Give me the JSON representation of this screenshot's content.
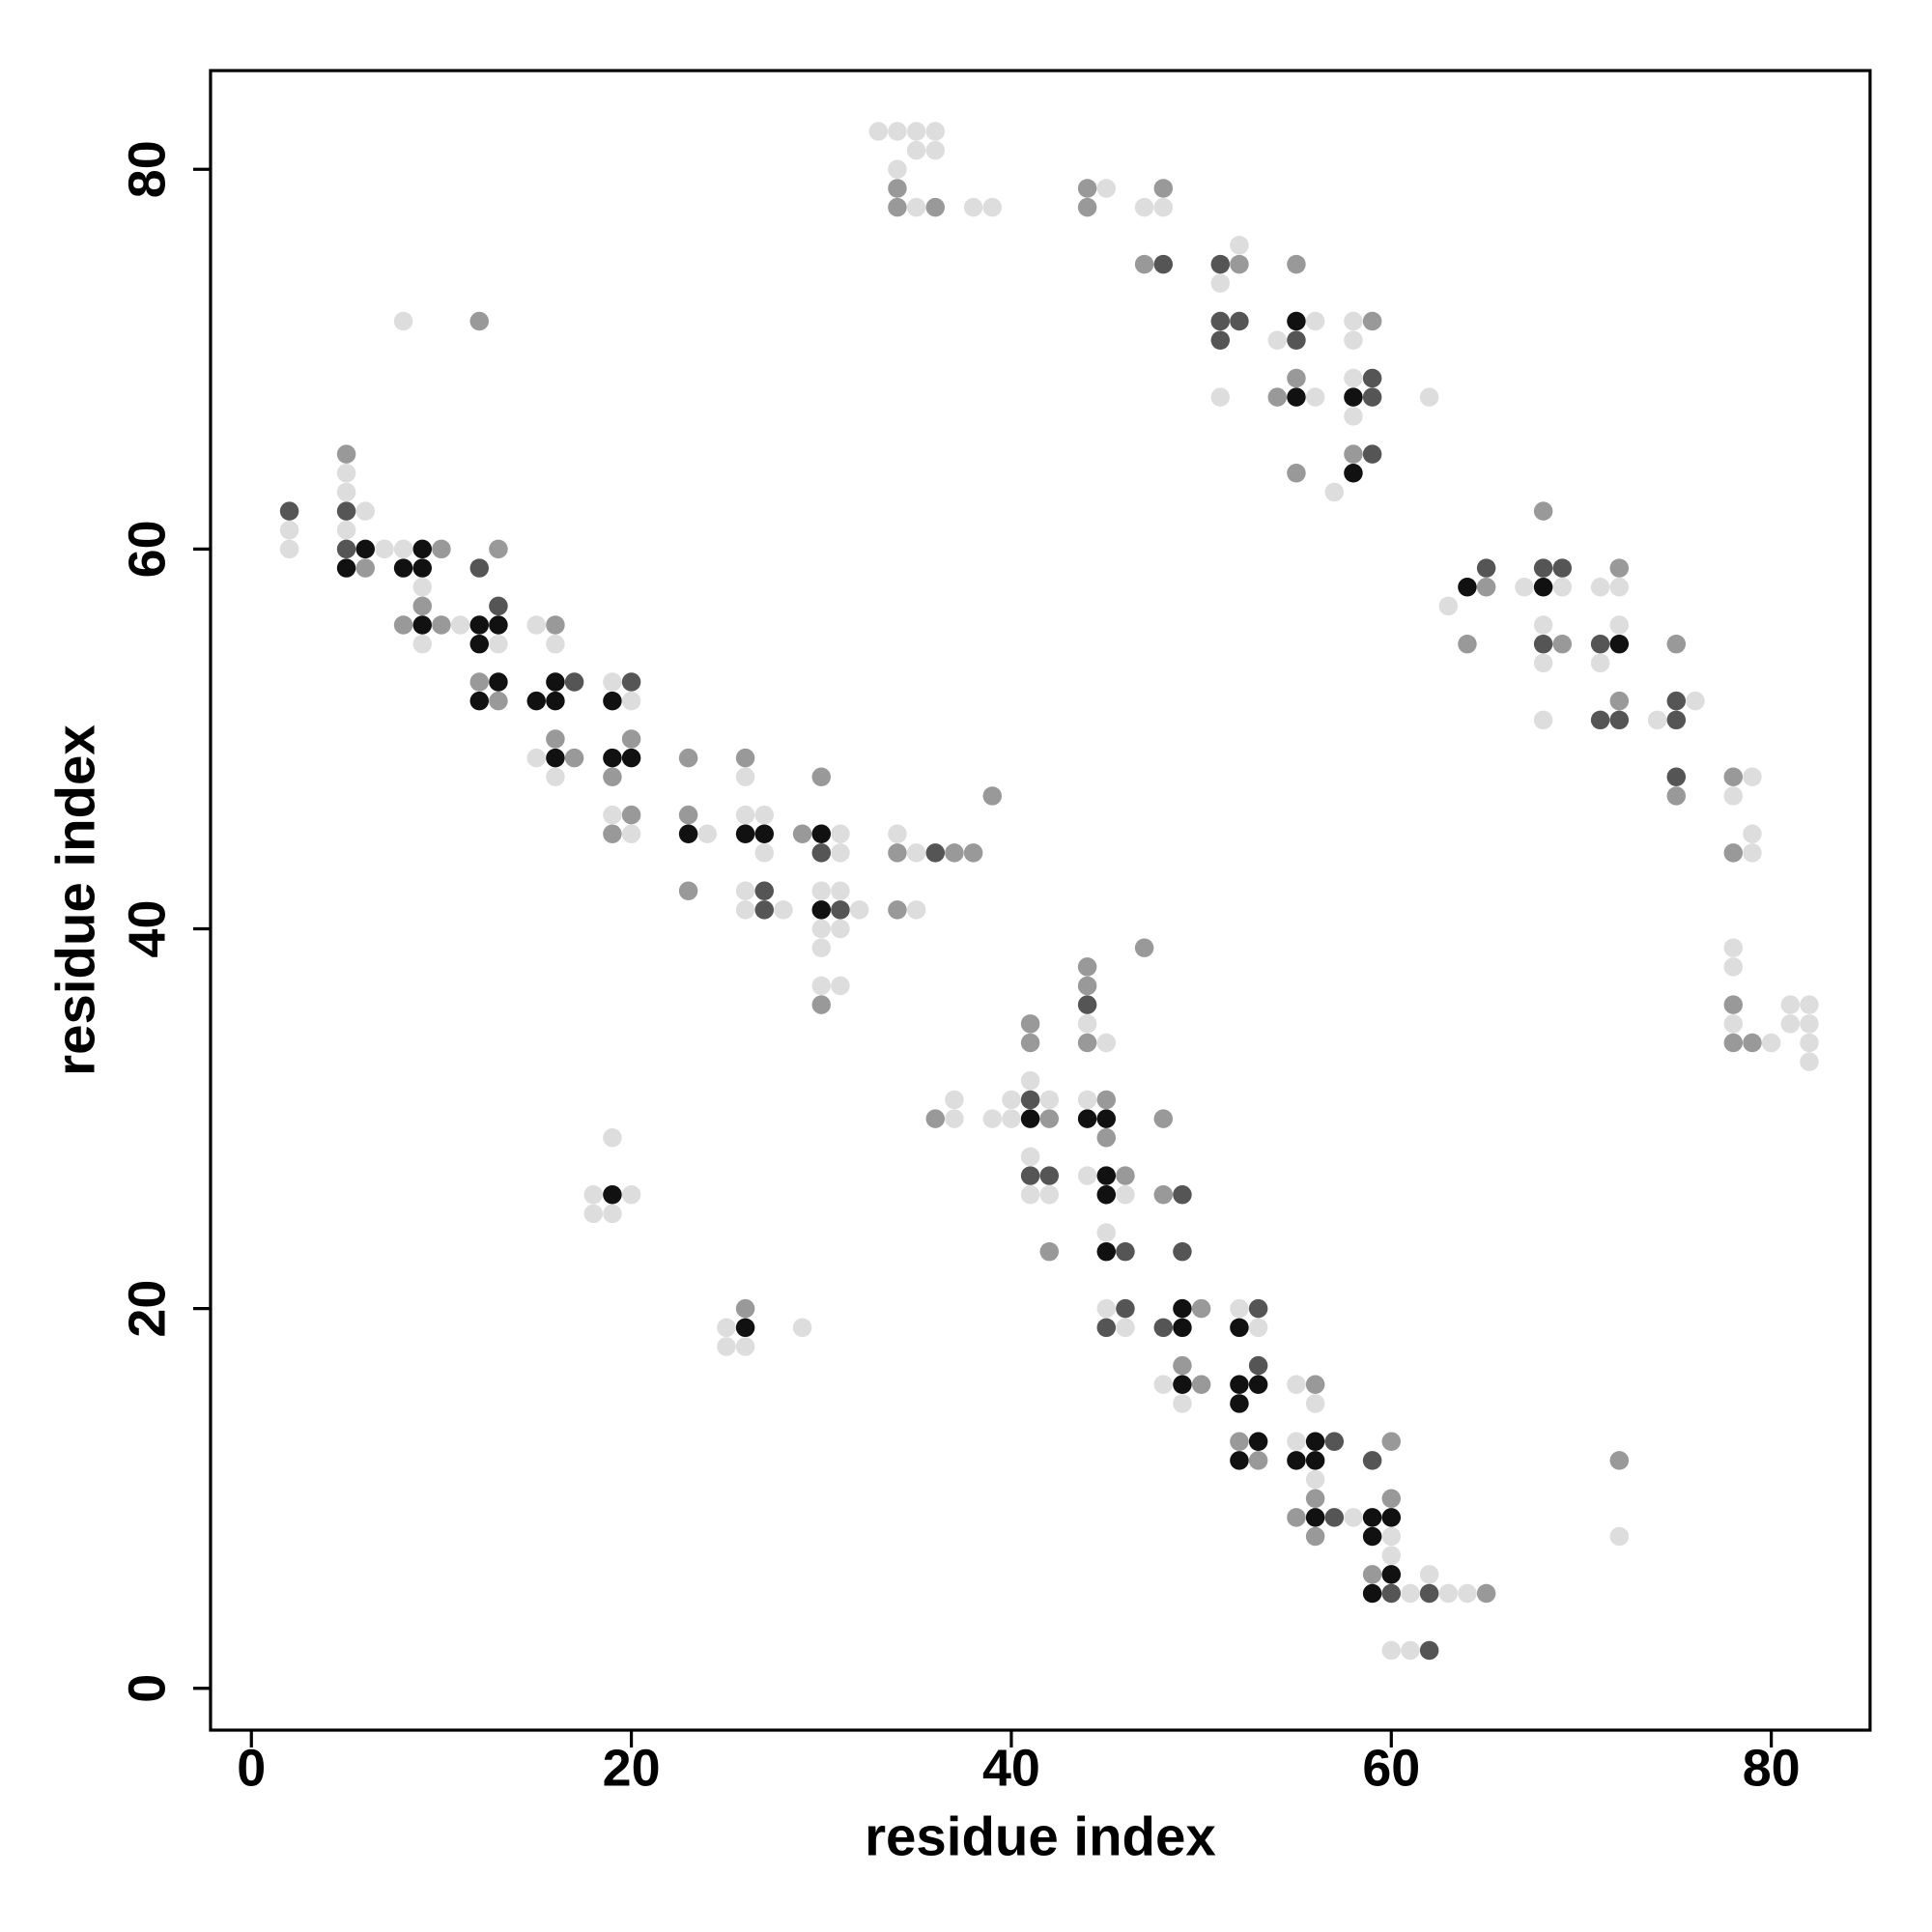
{
  "chart_data": {
    "type": "scatter",
    "x_label": "residue index",
    "y_label": "residue index",
    "xlim": [
      -2.15,
      85.2
    ],
    "ylim": [
      -2.2,
      85.2
    ],
    "xticks": [
      0,
      20,
      40,
      60,
      80
    ],
    "yticks": [
      0,
      20,
      40,
      60,
      80
    ],
    "grid": false,
    "series": [
      {
        "color": "#dddddd",
        "x": [
          2,
          2,
          5,
          5,
          5,
          6,
          7,
          8,
          8,
          9,
          9,
          11,
          13,
          15,
          15,
          16,
          16,
          18,
          18,
          19,
          19,
          19,
          19,
          20,
          20,
          20,
          24,
          25,
          25,
          26,
          26,
          26,
          26,
          26,
          27,
          27,
          28,
          29,
          30,
          30,
          30,
          30,
          31,
          31,
          31,
          31,
          31,
          32,
          33,
          34,
          34,
          34,
          35,
          35,
          35,
          35,
          35,
          36,
          36,
          37,
          37,
          38,
          39,
          39,
          40,
          40,
          41,
          41,
          41,
          42,
          42,
          44,
          44,
          44,
          45,
          45,
          45,
          45,
          46,
          46,
          47,
          48,
          48,
          49,
          51,
          51,
          52,
          52,
          53,
          54,
          55,
          55,
          56,
          56,
          56,
          56,
          57,
          58,
          58,
          58,
          58,
          58,
          60,
          60,
          60,
          61,
          61,
          62,
          62,
          63,
          63,
          64,
          67,
          68,
          68,
          68,
          69,
          71,
          71,
          72,
          72,
          72,
          74,
          76,
          78,
          78,
          78,
          78,
          79,
          79,
          79,
          80,
          81,
          81,
          82,
          82,
          82,
          82
        ],
        "y": [
          61,
          60,
          64,
          63,
          61,
          62,
          60,
          72,
          60,
          58,
          55,
          56,
          55,
          56,
          49,
          55,
          48,
          26,
          25,
          53,
          46,
          29,
          25,
          52,
          45,
          26,
          45,
          19,
          18,
          48,
          46,
          42,
          41,
          18,
          46,
          44,
          41,
          19,
          42,
          40,
          39,
          37,
          45,
          44,
          42,
          40,
          37,
          41,
          82,
          82,
          80,
          45,
          82,
          81,
          78,
          44,
          41,
          82,
          81,
          31,
          30,
          78,
          78,
          30,
          31,
          30,
          32,
          28,
          26,
          31,
          26,
          35,
          31,
          27,
          79,
          34,
          24,
          20,
          26,
          19,
          78,
          78,
          16,
          15,
          74,
          68,
          76,
          20,
          19,
          71,
          16,
          13,
          72,
          68,
          15,
          11,
          63,
          72,
          71,
          69,
          67,
          9,
          8,
          7,
          2,
          5,
          2,
          68,
          6,
          57,
          5,
          5,
          58,
          56,
          54,
          51,
          58,
          58,
          54,
          58,
          56,
          8,
          51,
          52,
          47,
          39,
          38,
          35,
          48,
          45,
          44,
          34,
          36,
          35,
          36,
          35,
          34,
          33
        ]
      },
      {
        "color": "#999999",
        "x": [
          5,
          6,
          8,
          9,
          10,
          10,
          12,
          12,
          13,
          13,
          16,
          16,
          17,
          19,
          19,
          20,
          20,
          23,
          23,
          23,
          26,
          26,
          29,
          30,
          30,
          34,
          34,
          34,
          34,
          36,
          36,
          37,
          38,
          39,
          41,
          41,
          42,
          42,
          44,
          44,
          44,
          44,
          44,
          45,
          45,
          46,
          47,
          47,
          48,
          48,
          48,
          49,
          50,
          50,
          52,
          52,
          53,
          54,
          55,
          55,
          55,
          55,
          56,
          56,
          56,
          58,
          59,
          59,
          60,
          60,
          64,
          65,
          65,
          68,
          69,
          72,
          72,
          72,
          75,
          75,
          78,
          78,
          78,
          78,
          79
        ],
        "y": [
          65,
          59,
          56,
          57,
          60,
          56,
          72,
          53,
          60,
          52,
          56,
          50,
          49,
          48,
          45,
          50,
          46,
          49,
          46,
          42,
          49,
          20,
          45,
          48,
          36,
          79,
          78,
          44,
          41,
          78,
          30,
          44,
          44,
          47,
          35,
          34,
          30,
          23,
          79,
          78,
          38,
          37,
          34,
          31,
          29,
          27,
          75,
          39,
          79,
          30,
          26,
          17,
          20,
          16,
          75,
          13,
          12,
          68,
          75,
          69,
          64,
          9,
          16,
          10,
          8,
          65,
          72,
          6,
          13,
          10,
          55,
          58,
          5,
          62,
          55,
          59,
          52,
          12,
          55,
          47,
          48,
          44,
          36,
          34,
          34
        ]
      },
      {
        "color": "#555555",
        "x": [
          2,
          5,
          5,
          12,
          13,
          17,
          20,
          27,
          27,
          30,
          31,
          36,
          41,
          41,
          42,
          44,
          45,
          46,
          46,
          48,
          48,
          49,
          49,
          51,
          51,
          51,
          52,
          53,
          53,
          55,
          57,
          57,
          59,
          59,
          59,
          59,
          60,
          62,
          62,
          65,
          68,
          68,
          69,
          71,
          71,
          72,
          75,
          75,
          75
        ],
        "y": [
          62,
          62,
          60,
          59,
          57,
          53,
          53,
          42,
          41,
          44,
          41,
          44,
          31,
          27,
          27,
          36,
          19,
          23,
          20,
          75,
          19,
          26,
          23,
          75,
          72,
          71,
          72,
          20,
          17,
          71,
          13,
          9,
          69,
          68,
          65,
          12,
          5,
          5,
          2,
          59,
          59,
          55,
          59,
          55,
          51,
          51,
          52,
          51,
          48
        ]
      },
      {
        "color": "#111111",
        "x": [
          5,
          6,
          8,
          9,
          9,
          9,
          12,
          12,
          12,
          13,
          13,
          15,
          16,
          16,
          16,
          19,
          19,
          19,
          20,
          23,
          26,
          26,
          27,
          30,
          30,
          41,
          44,
          45,
          45,
          45,
          45,
          49,
          49,
          49,
          52,
          52,
          52,
          52,
          53,
          53,
          55,
          55,
          55,
          56,
          56,
          56,
          58,
          58,
          59,
          59,
          59,
          60,
          60,
          64,
          68,
          72
        ],
        "y": [
          59,
          60,
          59,
          60,
          59,
          56,
          56,
          55,
          52,
          56,
          53,
          52,
          53,
          52,
          49,
          52,
          49,
          26,
          49,
          45,
          45,
          19,
          45,
          45,
          41,
          30,
          30,
          30,
          27,
          26,
          23,
          20,
          19,
          16,
          19,
          16,
          15,
          12,
          16,
          13,
          72,
          68,
          12,
          13,
          12,
          9,
          68,
          64,
          9,
          8,
          5,
          9,
          6,
          58,
          58,
          55
        ]
      }
    ]
  }
}
